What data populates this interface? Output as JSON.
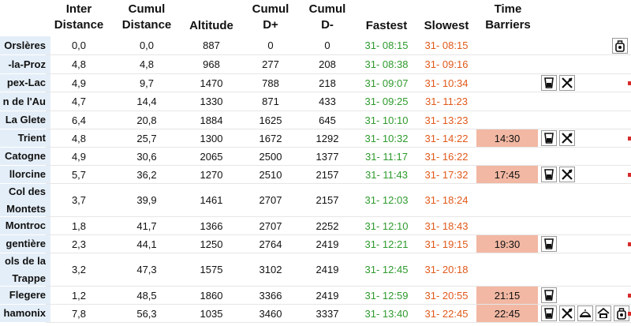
{
  "headers": {
    "inter_distance": "Inter\nDistance",
    "cumul_distance": "Cumul\nDistance",
    "altitude": "Altitude",
    "cumul_dplus": "Cumul\nD+",
    "cumul_dminus": "Cumul\nD-",
    "fastest": "Fastest",
    "slowest": "Slowest",
    "time_barriers": "Time\nBarriers"
  },
  "rows": [
    {
      "name": "Orslères",
      "inter": "0,0",
      "cumul": "0,0",
      "alt": "887",
      "dplus": "0",
      "dminus": "0",
      "fastest": "31- 08:15",
      "slowest": "31- 08:15",
      "barrier": "",
      "icons": [
        "bag-icon"
      ],
      "edge": false
    },
    {
      "name": "-la-Proz",
      "inter": "4,8",
      "cumul": "4,8",
      "alt": "968",
      "dplus": "277",
      "dminus": "208",
      "fastest": "31- 08:38",
      "slowest": "31- 09:16",
      "barrier": "",
      "icons": [],
      "edge": false
    },
    {
      "name": "pex-Lac",
      "inter": "4,9",
      "cumul": "9,7",
      "alt": "1470",
      "dplus": "788",
      "dminus": "218",
      "fastest": "31- 09:07",
      "slowest": "31- 10:34",
      "barrier": "",
      "icons": [
        "drink-icon",
        "food-icon"
      ],
      "edge": true
    },
    {
      "name": "n de l'Au",
      "inter": "4,7",
      "cumul": "14,4",
      "alt": "1330",
      "dplus": "871",
      "dminus": "433",
      "fastest": "31- 09:25",
      "slowest": "31- 11:23",
      "barrier": "",
      "icons": [],
      "edge": false
    },
    {
      "name": "La Glete",
      "inter": "6,4",
      "cumul": "20,8",
      "alt": "1884",
      "dplus": "1625",
      "dminus": "645",
      "fastest": "31- 10:10",
      "slowest": "31- 13:23",
      "barrier": "",
      "icons": [],
      "edge": false
    },
    {
      "name": "Trient",
      "inter": "4,8",
      "cumul": "25,7",
      "alt": "1300",
      "dplus": "1672",
      "dminus": "1292",
      "fastest": "31- 10:32",
      "slowest": "31- 14:22",
      "barrier": "14:30",
      "icons": [
        "drink-icon",
        "food-icon"
      ],
      "edge": true
    },
    {
      "name": "Catogne",
      "inter": "4,9",
      "cumul": "30,6",
      "alt": "2065",
      "dplus": "2500",
      "dminus": "1377",
      "fastest": "31- 11:17",
      "slowest": "31- 16:22",
      "barrier": "",
      "icons": [],
      "edge": false
    },
    {
      "name": "llorcine",
      "inter": "5,7",
      "cumul": "36,2",
      "alt": "1270",
      "dplus": "2510",
      "dminus": "2157",
      "fastest": "31- 11:43",
      "slowest": "31- 17:32",
      "barrier": "17:45",
      "icons": [
        "drink-icon",
        "food-icon"
      ],
      "edge": true
    },
    {
      "name": "Col des\nMontets",
      "inter": "3,7",
      "cumul": "39,9",
      "alt": "1461",
      "dplus": "2707",
      "dminus": "2157",
      "fastest": "31- 12:03",
      "slowest": "31- 18:24",
      "barrier": "",
      "icons": [],
      "edge": false
    },
    {
      "name": "Montroc",
      "inter": "1,8",
      "cumul": "41,7",
      "alt": "1366",
      "dplus": "2707",
      "dminus": "2252",
      "fastest": "31- 12:10",
      "slowest": "31- 18:43",
      "barrier": "",
      "icons": [],
      "edge": false
    },
    {
      "name": "gentière",
      "inter": "2,3",
      "cumul": "44,1",
      "alt": "1250",
      "dplus": "2764",
      "dminus": "2419",
      "fastest": "31- 12:21",
      "slowest": "31- 19:15",
      "barrier": "19:30",
      "icons": [
        "drink-icon"
      ],
      "edge": true
    },
    {
      "name": "ols de la\nTrappe",
      "inter": "3,2",
      "cumul": "47,3",
      "alt": "1575",
      "dplus": "3102",
      "dminus": "2419",
      "fastest": "31- 12:45",
      "slowest": "31- 20:18",
      "barrier": "",
      "icons": [],
      "edge": false
    },
    {
      "name": "Flegere",
      "inter": "1,2",
      "cumul": "48,5",
      "alt": "1860",
      "dplus": "3366",
      "dminus": "2419",
      "fastest": "31- 12:59",
      "slowest": "31- 20:55",
      "barrier": "21:15",
      "icons": [
        "drink-icon"
      ],
      "edge": true
    },
    {
      "name": "hamonix",
      "inter": "7,8",
      "cumul": "56,3",
      "alt": "1035",
      "dplus": "3460",
      "dminus": "3337",
      "fastest": "31- 13:40",
      "slowest": "31- 22:45",
      "barrier": "22:45",
      "icons": [
        "drink-icon",
        "food-icon",
        "meal-icon",
        "shelter-icon",
        "bag-icon"
      ],
      "edge": true
    }
  ]
}
